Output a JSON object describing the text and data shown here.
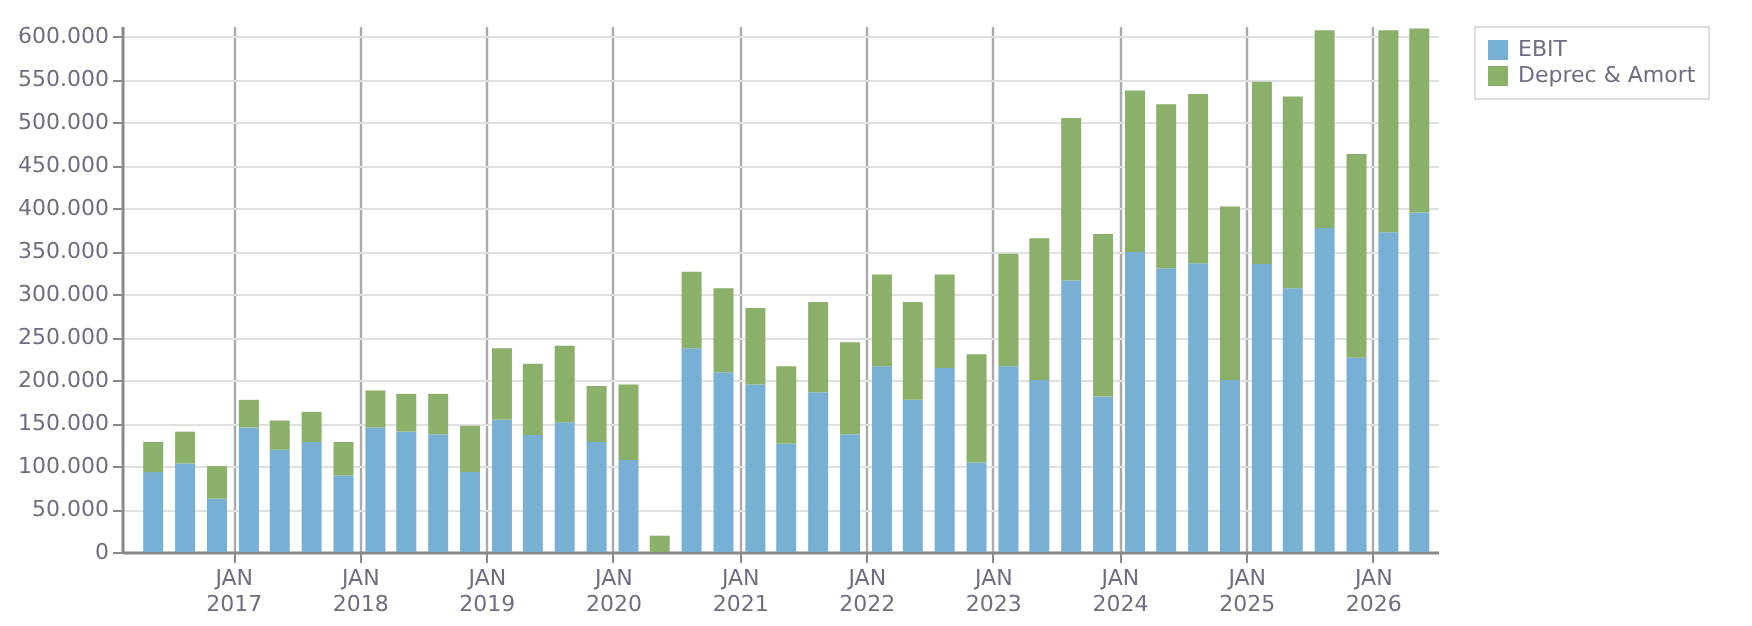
{
  "chart_data": {
    "type": "bar",
    "stacked": true,
    "x": [
      "2016-05-15",
      "2016-08-15",
      "2016-11-15",
      "2017-02-15",
      "2017-05-15",
      "2017-08-15",
      "2017-11-15",
      "2018-02-15",
      "2018-05-15",
      "2018-08-15",
      "2018-11-15",
      "2019-02-15",
      "2019-05-15",
      "2019-08-15",
      "2019-11-15",
      "2020-02-15",
      "2020-05-15",
      "2020-08-15",
      "2020-11-15",
      "2021-02-15",
      "2021-05-15",
      "2021-08-15",
      "2021-11-15",
      "2022-02-15",
      "2022-05-15",
      "2022-08-15",
      "2022-11-15",
      "2023-02-15",
      "2023-05-15",
      "2023-08-15",
      "2023-11-15",
      "2024-02-15",
      "2024-05-15",
      "2024-08-15",
      "2024-11-15",
      "2025-02-15",
      "2025-05-15",
      "2025-08-15",
      "2025-11-15",
      "2026-02-15",
      "2026-05-15"
    ],
    "series": [
      {
        "name": "EBIT",
        "color": "#78b0d4",
        "values": [
          93000,
          103000,
          62000,
          145000,
          119000,
          128000,
          89000,
          145000,
          140000,
          137000,
          93000,
          154000,
          136000,
          151000,
          128000,
          107000,
          0,
          237000,
          209000,
          195000,
          126000,
          186000,
          137000,
          216000,
          177000,
          214000,
          104000,
          216000,
          200000,
          316000,
          181000,
          349000,
          330000,
          336000,
          200000,
          335000,
          307000,
          377000,
          226000,
          372000,
          395000
        ]
      },
      {
        "name": "Deprec & Amort",
        "color": "#8ab06a",
        "values": [
          35000,
          37000,
          38000,
          32000,
          34000,
          35000,
          39000,
          43000,
          44000,
          47000,
          54000,
          83000,
          83000,
          89000,
          65000,
          88000,
          19000,
          89000,
          98000,
          89000,
          90000,
          105000,
          107000,
          107000,
          114000,
          109000,
          126000,
          131000,
          165000,
          189000,
          189000,
          188000,
          191000,
          197000,
          202000,
          212000,
          223000,
          230000,
          237000,
          235000,
          214000
        ]
      }
    ],
    "xlim": [
      "2016-02-15",
      "2026-07-08"
    ],
    "xticks": [
      {
        "value": "2017-01-01",
        "label": "JAN\n2017"
      },
      {
        "value": "2018-01-01",
        "label": "JAN\n2018"
      },
      {
        "value": "2019-01-01",
        "label": "JAN\n2019"
      },
      {
        "value": "2020-01-01",
        "label": "JAN\n2020"
      },
      {
        "value": "2021-01-01",
        "label": "JAN\n2021"
      },
      {
        "value": "2022-01-01",
        "label": "JAN\n2022"
      },
      {
        "value": "2023-01-01",
        "label": "JAN\n2023"
      },
      {
        "value": "2024-01-01",
        "label": "JAN\n2024"
      },
      {
        "value": "2025-01-01",
        "label": "JAN\n2025"
      },
      {
        "value": "2026-01-01",
        "label": "JAN\n2026"
      }
    ],
    "ylim": [
      0,
      612000
    ],
    "yticks": [
      {
        "value": 0,
        "label": "0"
      },
      {
        "value": 50000,
        "label": "50.000"
      },
      {
        "value": 100000,
        "label": "100.000"
      },
      {
        "value": 150000,
        "label": "150.000"
      },
      {
        "value": 200000,
        "label": "200.000"
      },
      {
        "value": 250000,
        "label": "250.000"
      },
      {
        "value": 300000,
        "label": "300.000"
      },
      {
        "value": 350000,
        "label": "350.000"
      },
      {
        "value": 400000,
        "label": "400.000"
      },
      {
        "value": 450000,
        "label": "450.000"
      },
      {
        "value": 500000,
        "label": "500.000"
      },
      {
        "value": 550000,
        "label": "550.000"
      },
      {
        "value": 600000,
        "label": "600.000"
      }
    ],
    "grid": true,
    "legend": "top right"
  }
}
